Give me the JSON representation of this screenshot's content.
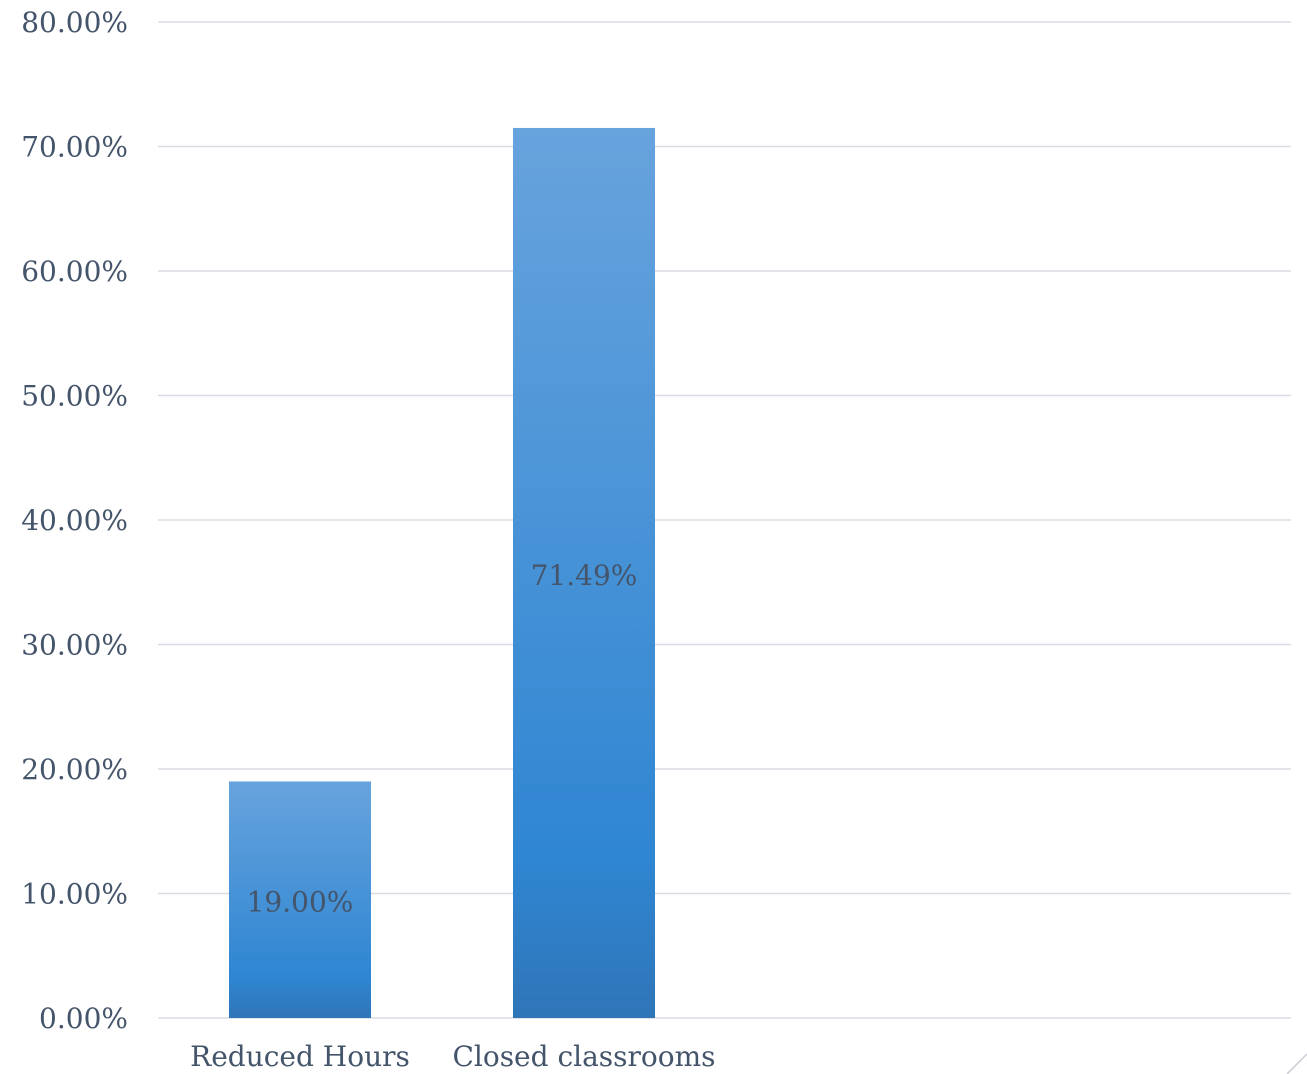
{
  "chart_data": {
    "type": "bar",
    "title": "",
    "xlabel": "",
    "ylabel": "",
    "categories": [
      "Reduced Hours",
      "Closed classrooms"
    ],
    "values": [
      19.0,
      71.49
    ],
    "data_labels": [
      "19.00%",
      "71.49%"
    ],
    "y_ticks": [
      0,
      10,
      20,
      30,
      40,
      50,
      60,
      70,
      80
    ],
    "y_tick_labels": [
      "0.00%",
      "10.00%",
      "20.00%",
      "30.00%",
      "40.00%",
      "50.00%",
      "60.00%",
      "70.00%",
      "80.00%"
    ],
    "ylim": [
      0,
      80
    ],
    "category_slots": 8,
    "grid": true,
    "legend": "none",
    "colors": {
      "bar_top": "#67a3dd",
      "bar_mid": "#2f86d2",
      "bar_bottom": "#2f75b8",
      "grid": "#d9dde3",
      "text": "#44546a"
    }
  }
}
